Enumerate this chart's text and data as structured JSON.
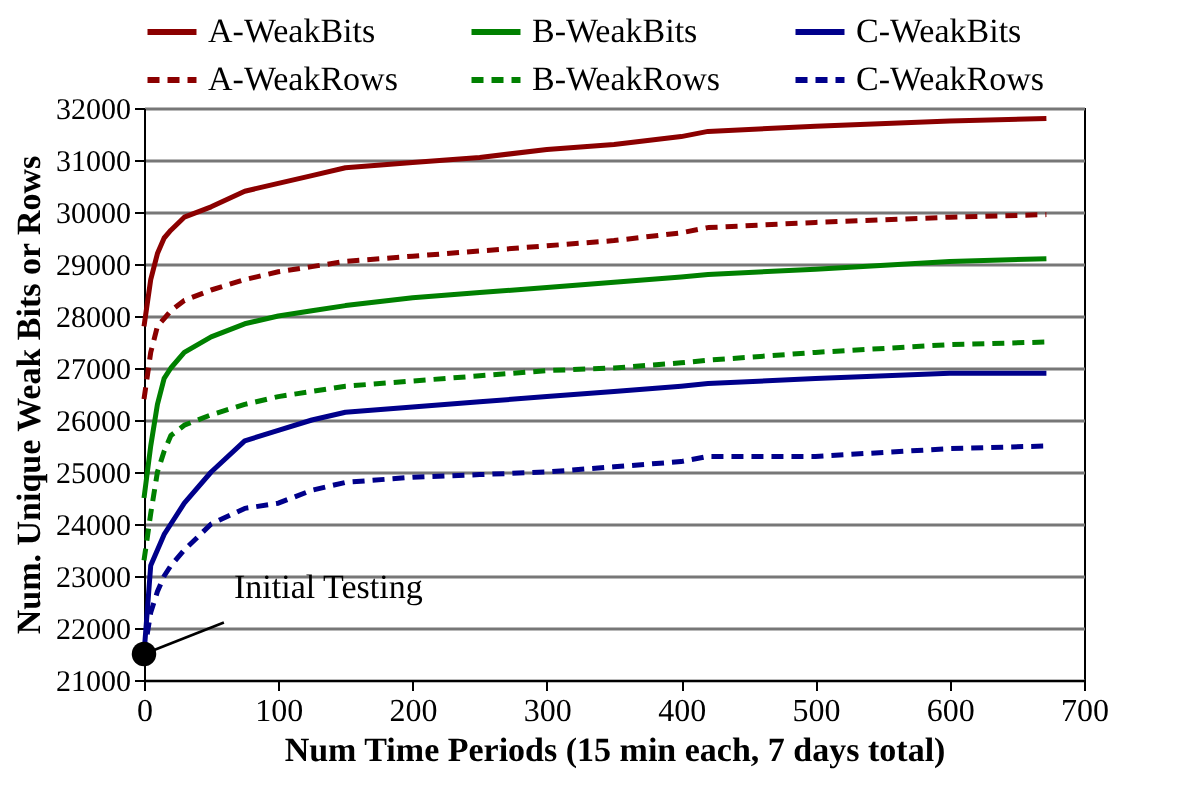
{
  "chart_data": {
    "type": "line",
    "xlabel": "Num Time Periods (15 min each, 7 days total)",
    "ylabel": "Num. Unique Weak Bits or Rows",
    "x": [
      0,
      5,
      10,
      15,
      20,
      30,
      50,
      75,
      100,
      125,
      150,
      200,
      250,
      300,
      350,
      400,
      420,
      500,
      600,
      672
    ],
    "series": [
      {
        "name": "A-WeakBits",
        "color": "#8b0000",
        "line_style": "solid",
        "values": [
          27800,
          28700,
          29200,
          29500,
          29650,
          29900,
          30100,
          30400,
          30550,
          30700,
          30850,
          30950,
          31050,
          31200,
          31300,
          31450,
          31550,
          31650,
          31750,
          31800
        ]
      },
      {
        "name": "B-WeakBits",
        "color": "#008000",
        "line_style": "solid",
        "values": [
          24500,
          25500,
          26300,
          26800,
          27000,
          27300,
          27600,
          27850,
          28000,
          28100,
          28200,
          28350,
          28450,
          28550,
          28650,
          28750,
          28800,
          28900,
          29050,
          29100
        ]
      },
      {
        "name": "C-WeakBits",
        "color": "#00008b",
        "line_style": "solid",
        "values": [
          21500,
          23200,
          23500,
          23800,
          24000,
          24400,
          25000,
          25600,
          25800,
          26000,
          26150,
          26250,
          26350,
          26450,
          26550,
          26650,
          26700,
          26800,
          26900,
          26900
        ]
      },
      {
        "name": "A-WeakRows",
        "color": "#8b0000",
        "line_style": "dashed",
        "values": [
          26400,
          27300,
          27800,
          27950,
          28100,
          28300,
          28500,
          28700,
          28850,
          28950,
          29050,
          29150,
          29250,
          29350,
          29450,
          29600,
          29700,
          29800,
          29900,
          29950
        ]
      },
      {
        "name": "B-WeakRows",
        "color": "#008000",
        "line_style": "dashed",
        "values": [
          23300,
          24200,
          25000,
          25400,
          25700,
          25900,
          26100,
          26300,
          26450,
          26550,
          26650,
          26750,
          26850,
          26950,
          27000,
          27100,
          27150,
          27300,
          27450,
          27500
        ]
      },
      {
        "name": "C-WeakRows",
        "color": "#00008b",
        "line_style": "dashed",
        "values": [
          21500,
          22300,
          22700,
          23000,
          23200,
          23500,
          24000,
          24300,
          24400,
          24650,
          24800,
          24900,
          24950,
          25000,
          25100,
          25200,
          25300,
          25300,
          25450,
          25500
        ]
      }
    ],
    "xlim": [
      0,
      700
    ],
    "xticks": [
      0,
      100,
      200,
      300,
      400,
      500,
      600,
      700
    ],
    "ylim": [
      21000,
      32000
    ],
    "yticks": [
      21000,
      22000,
      23000,
      24000,
      25000,
      26000,
      27000,
      28000,
      29000,
      30000,
      31000,
      32000
    ],
    "grid": "y",
    "legend": "top",
    "annotations": [
      {
        "text": "Initial Testing",
        "x": 0,
        "y": 21500
      }
    ]
  }
}
